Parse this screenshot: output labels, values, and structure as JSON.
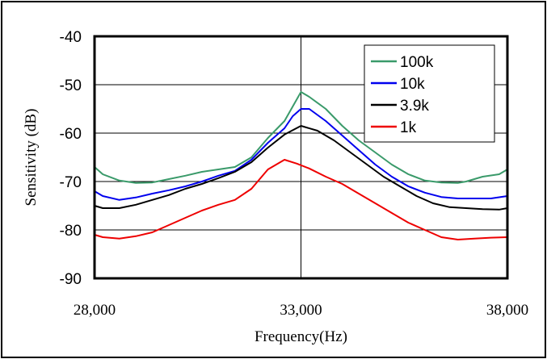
{
  "chart_data": {
    "type": "line",
    "xlabel": "Frequency(Hz)",
    "ylabel": "Sensitivity  (dB)",
    "xlim": [
      28000,
      38000
    ],
    "ylim": [
      -90,
      -40
    ],
    "x_ticks": [
      28000,
      33000,
      38000
    ],
    "x_tick_labels": [
      "28,000",
      "33,000",
      "38,000"
    ],
    "y_ticks": [
      -40,
      -50,
      -60,
      -70,
      -80,
      -90
    ],
    "y_tick_labels": [
      "-40",
      "-50",
      "-60",
      "-70",
      "-80",
      "-90"
    ],
    "grid": "major lines at x=33,000 and y=-50,-60,-70,-80",
    "legend_position": "top-right",
    "series": [
      {
        "name": "100k",
        "color": "#3a9a6a",
        "points": [
          [
            28000,
            -67
          ],
          [
            28200,
            -68.5
          ],
          [
            28600,
            -69.8
          ],
          [
            29000,
            -70.3
          ],
          [
            29400,
            -70.2
          ],
          [
            29800,
            -69.5
          ],
          [
            30200,
            -68.8
          ],
          [
            30600,
            -68
          ],
          [
            31000,
            -67.5
          ],
          [
            31400,
            -67
          ],
          [
            31800,
            -65
          ],
          [
            32200,
            -61
          ],
          [
            32600,
            -57.5
          ],
          [
            32800,
            -54.5
          ],
          [
            33000,
            -51.5
          ],
          [
            33200,
            -52.5
          ],
          [
            33600,
            -55
          ],
          [
            34000,
            -58.5
          ],
          [
            34400,
            -61.5
          ],
          [
            34800,
            -64
          ],
          [
            35200,
            -66.5
          ],
          [
            35600,
            -68.5
          ],
          [
            36000,
            -69.8
          ],
          [
            36400,
            -70.2
          ],
          [
            36800,
            -70.3
          ],
          [
            37000,
            -70
          ],
          [
            37400,
            -69
          ],
          [
            37800,
            -68.5
          ],
          [
            38000,
            -67.5
          ]
        ]
      },
      {
        "name": "10k",
        "color": "#0000ee",
        "points": [
          [
            28000,
            -72
          ],
          [
            28200,
            -73
          ],
          [
            28600,
            -73.8
          ],
          [
            29000,
            -73.3
          ],
          [
            29400,
            -72.5
          ],
          [
            29800,
            -71.8
          ],
          [
            30200,
            -71
          ],
          [
            30600,
            -70
          ],
          [
            31000,
            -68.8
          ],
          [
            31400,
            -67.8
          ],
          [
            31800,
            -65.5
          ],
          [
            32200,
            -62
          ],
          [
            32600,
            -59
          ],
          [
            32800,
            -56.5
          ],
          [
            33000,
            -55
          ],
          [
            33200,
            -55
          ],
          [
            33600,
            -57.5
          ],
          [
            34000,
            -60.5
          ],
          [
            34400,
            -63.5
          ],
          [
            34800,
            -66.5
          ],
          [
            35200,
            -69
          ],
          [
            35600,
            -71
          ],
          [
            36000,
            -72.3
          ],
          [
            36400,
            -73.2
          ],
          [
            36800,
            -73.5
          ],
          [
            37200,
            -73.5
          ],
          [
            37600,
            -73.5
          ],
          [
            38000,
            -73
          ]
        ]
      },
      {
        "name": "3.9k",
        "color": "#000000",
        "points": [
          [
            28000,
            -75
          ],
          [
            28200,
            -75.5
          ],
          [
            28600,
            -75.5
          ],
          [
            29000,
            -74.8
          ],
          [
            29400,
            -73.8
          ],
          [
            29800,
            -72.8
          ],
          [
            30200,
            -71.5
          ],
          [
            30600,
            -70.5
          ],
          [
            31000,
            -69.3
          ],
          [
            31400,
            -68
          ],
          [
            31800,
            -66
          ],
          [
            32200,
            -63
          ],
          [
            32600,
            -60.3
          ],
          [
            33000,
            -58.5
          ],
          [
            33400,
            -59.5
          ],
          [
            33800,
            -61.5
          ],
          [
            34200,
            -64
          ],
          [
            34600,
            -66.5
          ],
          [
            35000,
            -69
          ],
          [
            35400,
            -71
          ],
          [
            35800,
            -73
          ],
          [
            36200,
            -74.5
          ],
          [
            36600,
            -75.3
          ],
          [
            37000,
            -75.5
          ],
          [
            37400,
            -75.7
          ],
          [
            37800,
            -75.8
          ],
          [
            38000,
            -75.5
          ]
        ]
      },
      {
        "name": "1k",
        "color": "#ee0000",
        "points": [
          [
            28000,
            -81
          ],
          [
            28200,
            -81.5
          ],
          [
            28600,
            -81.8
          ],
          [
            29000,
            -81.3
          ],
          [
            29400,
            -80.5
          ],
          [
            29800,
            -79
          ],
          [
            30200,
            -77.5
          ],
          [
            30600,
            -76
          ],
          [
            31000,
            -74.8
          ],
          [
            31400,
            -73.8
          ],
          [
            31800,
            -71.5
          ],
          [
            32200,
            -67.5
          ],
          [
            32600,
            -65.5
          ],
          [
            32900,
            -66.3
          ],
          [
            33200,
            -67.3
          ],
          [
            33600,
            -69
          ],
          [
            34000,
            -70.5
          ],
          [
            34400,
            -72.5
          ],
          [
            34800,
            -74.5
          ],
          [
            35200,
            -76.5
          ],
          [
            35600,
            -78.5
          ],
          [
            36000,
            -80
          ],
          [
            36400,
            -81.5
          ],
          [
            36800,
            -82
          ],
          [
            37200,
            -81.8
          ],
          [
            37600,
            -81.6
          ],
          [
            38000,
            -81.5
          ]
        ]
      }
    ]
  }
}
